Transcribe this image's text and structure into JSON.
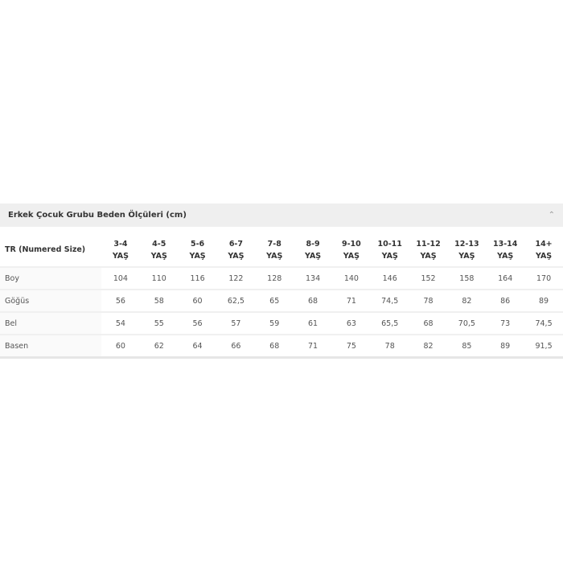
{
  "panel": {
    "title": "Erkek Çocuk Grubu Beden Ölçüleri (cm)",
    "collapse_icon": "chevron-up-icon"
  },
  "table": {
    "corner": "TR (Numered Size)",
    "columns": [
      {
        "range": "3-4",
        "unit": "YAŞ"
      },
      {
        "range": "4-5",
        "unit": "YAŞ"
      },
      {
        "range": "5-6",
        "unit": "YAŞ"
      },
      {
        "range": "6-7",
        "unit": "YAŞ"
      },
      {
        "range": "7-8",
        "unit": "YAŞ"
      },
      {
        "range": "8-9",
        "unit": "YAŞ"
      },
      {
        "range": "9-10",
        "unit": "YAŞ"
      },
      {
        "range": "10-11",
        "unit": "YAŞ"
      },
      {
        "range": "11-12",
        "unit": "YAŞ"
      },
      {
        "range": "12-13",
        "unit": "YAŞ"
      },
      {
        "range": "13-14",
        "unit": "YAŞ"
      },
      {
        "range": "14+",
        "unit": "YAŞ"
      }
    ],
    "rows": [
      {
        "label": "Boy",
        "values": [
          "104",
          "110",
          "116",
          "122",
          "128",
          "134",
          "140",
          "146",
          "152",
          "158",
          "164",
          "170"
        ]
      },
      {
        "label": "Göğüs",
        "values": [
          "56",
          "58",
          "60",
          "62,5",
          "65",
          "68",
          "71",
          "74,5",
          "78",
          "82",
          "86",
          "89"
        ]
      },
      {
        "label": "Bel",
        "values": [
          "54",
          "55",
          "56",
          "57",
          "59",
          "61",
          "63",
          "65,5",
          "68",
          "70,5",
          "73",
          "74,5"
        ]
      },
      {
        "label": "Basen",
        "values": [
          "60",
          "62",
          "64",
          "66",
          "68",
          "71",
          "75",
          "78",
          "82",
          "85",
          "89",
          "91,5"
        ]
      }
    ]
  }
}
